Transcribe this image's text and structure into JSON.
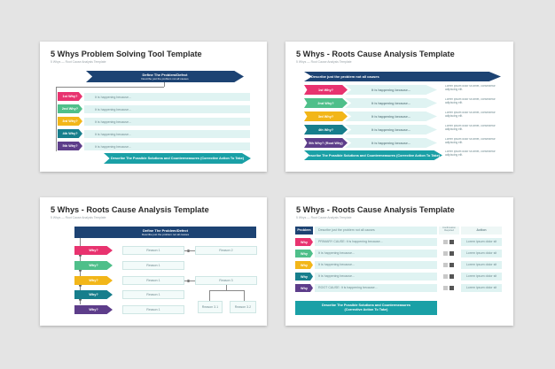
{
  "colors": {
    "navy": "#1d4373",
    "teal": "#1aa0a6",
    "pink": "#e8336f",
    "green": "#4fbf8a",
    "yellow": "#f2b619",
    "dark_teal": "#177e8c",
    "purple": "#5d3d8a",
    "light": "#dff3f2"
  },
  "slide1": {
    "title": "5 Whys Problem Solving Tool Template",
    "subtitle": "5 Whys — Root Cause Analysis Template",
    "header_title": "Define The Problem/Defect",
    "header_sub": "Describe just the problem not all causes",
    "whys": [
      {
        "label": "1st Why?",
        "text": "It is happening because..."
      },
      {
        "label": "2nd Why?",
        "text": "It is happening because..."
      },
      {
        "label": "3rd Why?",
        "text": "It is happening because..."
      },
      {
        "label": "4th Why?",
        "text": "It is happening because..."
      },
      {
        "label": "5th Why?",
        "text": "It is happening because..."
      }
    ],
    "footer": "Describe The Possible Solutions and Countermeasures (Corrective Action To Take)"
  },
  "slide2": {
    "title": "5 Whys - Roots Cause Analysis Template",
    "subtitle": "5 Whys — Root Cause Analysis Template",
    "header": "Describe just the problem not all causes",
    "whys": [
      {
        "label": "1st Why?",
        "text": "It is happening because...",
        "note": "Lorem ipsum dolor sit amet, consectetur adipiscing elit."
      },
      {
        "label": "2nd Why?",
        "text": "It is happening because...",
        "note": "Lorem ipsum dolor sit amet, consectetur adipiscing elit."
      },
      {
        "label": "3rd Why?",
        "text": "It is happening because...",
        "note": "Lorem ipsum dolor sit amet, consectetur adipiscing elit."
      },
      {
        "label": "4th Why?",
        "text": "It is happening because...",
        "note": "Lorem ipsum dolor sit amet, consectetur adipiscing elit."
      },
      {
        "label": "5th Why? (Root Why)",
        "text": "It is happening because...",
        "note": "Lorem ipsum dolor sit amet, consectetur adipiscing elit."
      }
    ],
    "footer": "Describe The Possible Solutions and Countermeasures (Corrective Action To Take)",
    "footer_note": "Lorem ipsum dolor sit amet, consectetur adipiscing elit."
  },
  "slide3": {
    "title": "5 Whys - Roots Cause Analysis Template",
    "subtitle": "5 Whys — Root Cause Analysis Template",
    "header_title": "Define The Problem/Defect",
    "header_sub": "Describe just the problem not all causes",
    "whys": [
      "Why?",
      "Why?",
      "Why?",
      "Why?",
      "Why?"
    ],
    "reasons_col1": [
      "Reason 1",
      "Reason 1",
      "Reason 1",
      "Reason 1",
      "Reason 1"
    ],
    "reason_2": "Reason 2",
    "reason_3": "Reason 3",
    "reason_31": "Reason 3.1",
    "reason_32": "Reason 3.2"
  },
  "slide4": {
    "title": "5 Whys - Roots Cause Analysis Template",
    "subtitle": "5 Whys — Root Cause Analysis Template",
    "col_headers": [
      "Problem",
      "Describe just the problem not all causes",
      "Confirmation Required",
      "Action"
    ],
    "rows": [
      {
        "label": "Why",
        "text": "PRIMARY CAUSE: It is happening because...",
        "action": "Lorem ipsum dolor sit"
      },
      {
        "label": "Why",
        "text": "It is happening because...",
        "action": "Lorem ipsum dolor sit"
      },
      {
        "label": "Why",
        "text": "It is happening because...",
        "action": "Lorem ipsum dolor sit"
      },
      {
        "label": "Why",
        "text": "It is happening because...",
        "action": "Lorem ipsum dolor sit"
      },
      {
        "label": "Why",
        "text": "ROOT CAUSE: It is happening because...",
        "action": "Lorem ipsum dolor sit"
      }
    ],
    "footer": "Describe The Possible Solutions and Countermeasures (Corrective Action To Take)"
  }
}
